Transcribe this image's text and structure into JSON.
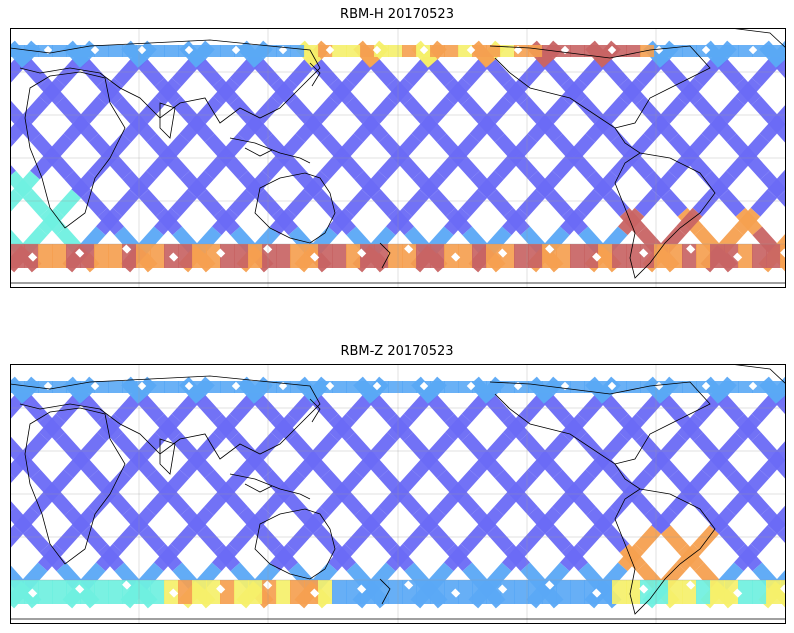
{
  "panels": [
    {
      "title": "RBM-H 20170523",
      "colors": {
        "low": "#6a6af5",
        "mid_low": "#5aa8f5",
        "mid": "#6ff0e0",
        "mid_high": "#f5f06a",
        "high": "#f5a050",
        "max": "#c86464"
      },
      "high_values_region": "southern band and north-central band"
    },
    {
      "title": "RBM-Z 20170523",
      "colors": {
        "low": "#6a6af5",
        "mid_low": "#5aa8f5",
        "mid": "#6ff0e0",
        "mid_high": "#f5f06a",
        "high": "#f5a050",
        "max": "#e07070"
      },
      "high_values_region": "southern band"
    }
  ]
}
